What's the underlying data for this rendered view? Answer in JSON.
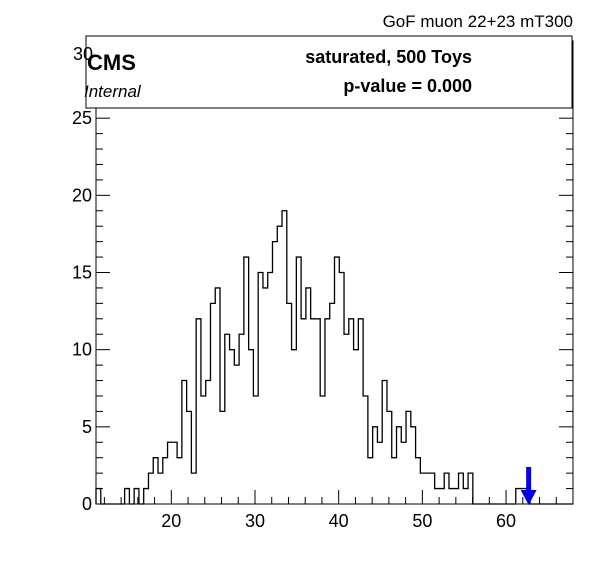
{
  "chart_data": {
    "type": "histogram",
    "title": "GoF muon 22+23 mT300",
    "xlabel": "",
    "ylabel": "",
    "xlim": [
      11,
      68
    ],
    "ylim": [
      0,
      30
    ],
    "bin_width": 0.57,
    "x_ticks": [
      "20",
      "30",
      "40",
      "50",
      "60"
    ],
    "y_ticks": [
      "0",
      "5",
      "10",
      "15",
      "20",
      "25",
      "30"
    ],
    "values": [
      1,
      0,
      0,
      0,
      0,
      0,
      1,
      0,
      1,
      0,
      1,
      2,
      3,
      2,
      3,
      4,
      4,
      3,
      8,
      6,
      2,
      12,
      7,
      8,
      13,
      14,
      6,
      11,
      10,
      9,
      11,
      16,
      10,
      7,
      15,
      14,
      15,
      17,
      18,
      19,
      13,
      10,
      16,
      12,
      14,
      12,
      12,
      7,
      12,
      13,
      16,
      15,
      11,
      12,
      10,
      12,
      7,
      3,
      5,
      4,
      8,
      6,
      3,
      5,
      4,
      6,
      5,
      3,
      2,
      2,
      2,
      1,
      1,
      2,
      1,
      1,
      2,
      1,
      2,
      0,
      0,
      0,
      0,
      0,
      0,
      0,
      0,
      0,
      1,
      1,
      1,
      0,
      0,
      0,
      0,
      0,
      0,
      0,
      0,
      0
    ],
    "observed_value": 62.7,
    "observed_color": "#0000ee"
  },
  "cms_label": "CMS",
  "internal_label": "Internal",
  "legend": {
    "line1": "saturated, 500 Toys",
    "line2": "p-value = 0.000"
  }
}
